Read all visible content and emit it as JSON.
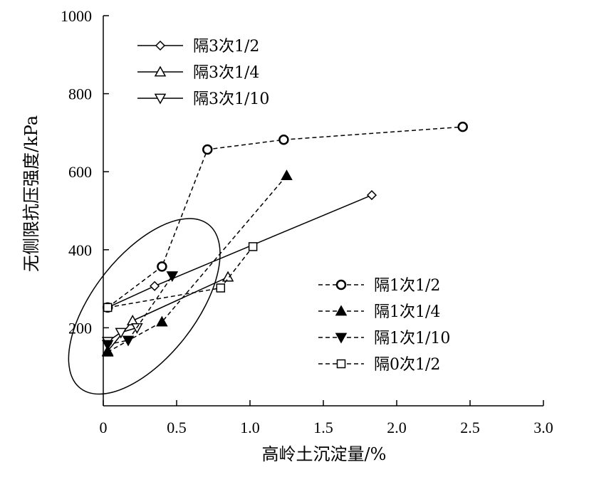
{
  "chart_data": {
    "type": "scatter",
    "xlabel": "高岭土沉淀量/%",
    "ylabel": "无侧限抗压强度/kPa",
    "xlim": [
      0,
      3.0
    ],
    "ylim": [
      0,
      1000
    ],
    "x_ticks": [
      0,
      0.5,
      1.0,
      1.5,
      2.0,
      2.5,
      3.0
    ],
    "x_tick_labels": [
      "0",
      "0.5",
      "1.0",
      "1.5",
      "2.0",
      "2.5",
      "3.0"
    ],
    "y_ticks": [
      200,
      400,
      600,
      800,
      1000
    ],
    "y_tick_labels": [
      "200",
      "400",
      "600",
      "800",
      "1000"
    ],
    "grid": false,
    "legend_solid_placement": "top-left",
    "legend_dashed_placement": "bottom-right",
    "series": [
      {
        "name": "隔3次1/2",
        "line": "solid",
        "marker": "diamond-open",
        "points": [
          [
            0.03,
            252
          ],
          [
            0.35,
            307
          ],
          [
            1.83,
            540
          ]
        ]
      },
      {
        "name": "隔3次1/4",
        "line": "solid",
        "marker": "triangle-up-open",
        "points": [
          [
            0.03,
            140
          ],
          [
            0.2,
            218
          ],
          [
            0.85,
            330
          ]
        ]
      },
      {
        "name": "隔3次1/10",
        "line": "solid",
        "marker": "triangle-down-open",
        "points": [
          [
            0.03,
            165
          ],
          [
            0.12,
            188
          ],
          [
            0.23,
            200
          ]
        ]
      },
      {
        "name": "隔1次1/2",
        "line": "dashed",
        "marker": "circle-open",
        "points": [
          [
            0.03,
            252
          ],
          [
            0.4,
            357
          ],
          [
            0.71,
            657
          ],
          [
            1.23,
            682
          ],
          [
            2.45,
            715
          ]
        ]
      },
      {
        "name": "隔1次1/4",
        "line": "dashed",
        "marker": "triangle-up-filled",
        "points": [
          [
            0.03,
            138
          ],
          [
            0.4,
            215
          ],
          [
            1.25,
            590
          ]
        ]
      },
      {
        "name": "隔1次1/10",
        "line": "dashed",
        "marker": "triangle-down-filled",
        "points": [
          [
            0.03,
            157
          ],
          [
            0.17,
            168
          ],
          [
            0.47,
            333
          ]
        ]
      },
      {
        "name": "隔0次1/2",
        "line": "dashed",
        "marker": "square-open",
        "points": [
          [
            0.03,
            252
          ],
          [
            0.8,
            302
          ],
          [
            1.02,
            408
          ]
        ]
      }
    ],
    "annotations": [
      {
        "type": "ellipse",
        "center": [
          0.28,
          255
        ],
        "note": ""
      }
    ]
  }
}
